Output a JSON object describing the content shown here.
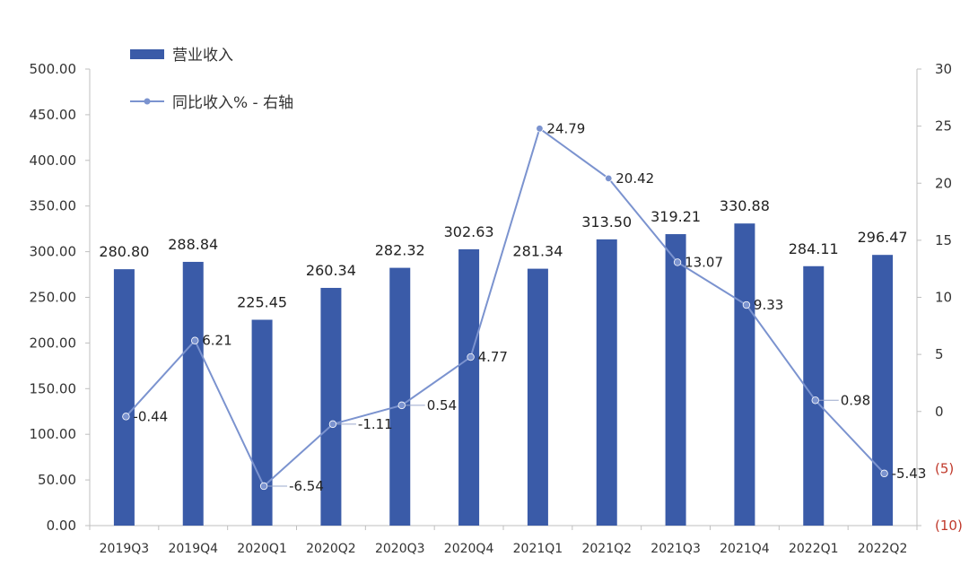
{
  "chart_data": {
    "type": "bar",
    "categories": [
      "2019Q3",
      "2019Q4",
      "2020Q1",
      "2020Q2",
      "2020Q3",
      "2020Q4",
      "2021Q1",
      "2021Q2",
      "2021Q3",
      "2021Q4",
      "2022Q1",
      "2022Q2"
    ],
    "series": [
      {
        "name": "营业收入",
        "type": "bar",
        "axis": "left",
        "values": [
          280.8,
          288.84,
          225.45,
          260.34,
          282.32,
          302.63,
          281.34,
          313.5,
          319.21,
          330.88,
          284.11,
          296.47
        ],
        "labels": [
          "280.80",
          "288.84",
          "225.45",
          "260.34",
          "282.32",
          "302.63",
          "281.34",
          "313.50",
          "319.21",
          "330.88",
          "284.11",
          "296.47"
        ],
        "color": "#3a5ba8"
      },
      {
        "name": "同比收入% - 右轴",
        "type": "line",
        "axis": "right",
        "values": [
          -0.44,
          6.21,
          -6.54,
          -1.11,
          0.54,
          4.77,
          24.79,
          20.42,
          13.07,
          9.33,
          0.98,
          -5.43
        ],
        "labels": [
          "-0.44",
          "6.21",
          "-6.54",
          "-1.11",
          "0.54",
          "4.77",
          "24.79",
          "20.42",
          "13.07",
          "9.33",
          "0.98",
          "-5.43"
        ],
        "color": "#7b93cf"
      }
    ],
    "y_left": {
      "ylim": [
        0,
        500
      ],
      "ticks": [
        0,
        50,
        100,
        150,
        200,
        250,
        300,
        350,
        400,
        450,
        500
      ],
      "tick_labels": [
        "0.00",
        "50.00",
        "100.00",
        "150.00",
        "200.00",
        "250.00",
        "300.00",
        "350.00",
        "400.00",
        "450.00",
        "500.00"
      ]
    },
    "y_right": {
      "ylim": [
        -10,
        30
      ],
      "ticks": [
        -10,
        -5,
        0,
        5,
        10,
        15,
        20,
        25,
        30
      ],
      "tick_labels": [
        "(10)",
        "(5)",
        "0",
        "5",
        "10",
        "15",
        "20",
        "25",
        "30"
      ],
      "negative_color": "#c0392b"
    },
    "legend_position": "top-left",
    "grid": false
  }
}
